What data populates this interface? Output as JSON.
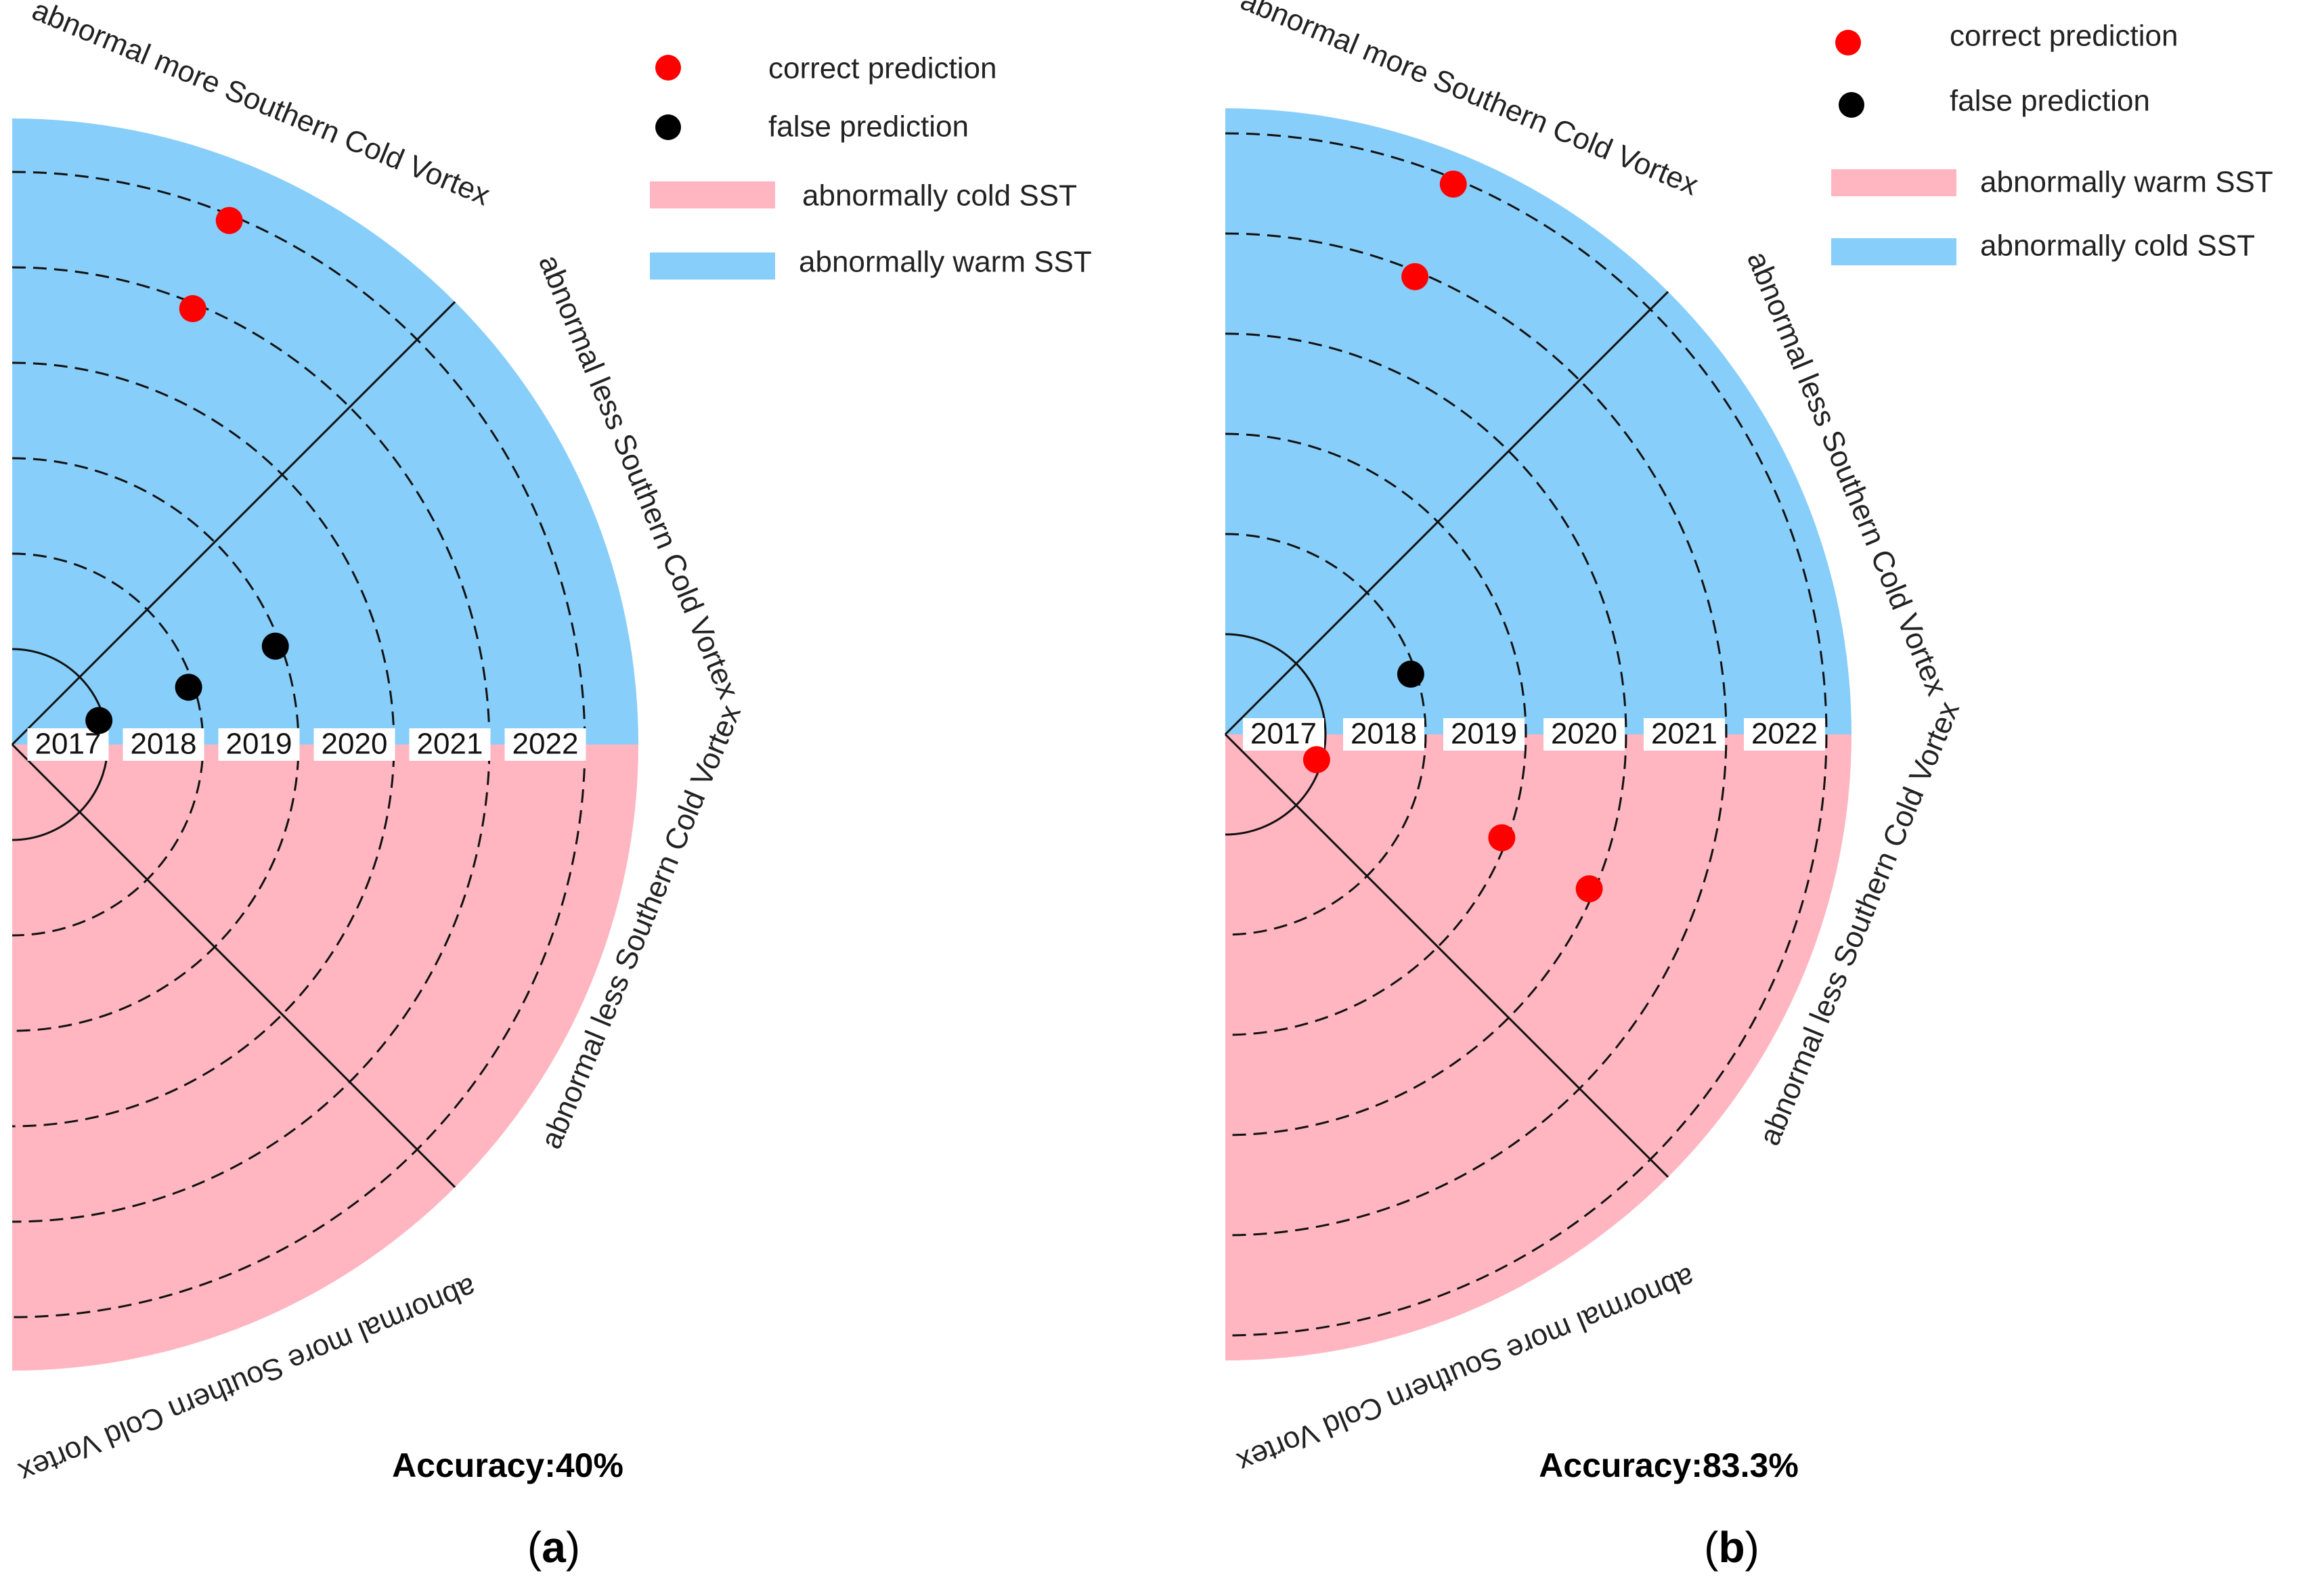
{
  "legend": {
    "correct": "correct prediction",
    "false": "false prediction"
  },
  "colors": {
    "blue": "#87cefa",
    "pink": "#ffb6c1",
    "correct": "#ff0000",
    "false": "#000000"
  },
  "chart_data": [
    {
      "type": "scatter",
      "panel_label": "a",
      "rings": [
        "2017",
        "2018",
        "2019",
        "2020",
        "2021",
        "2022"
      ],
      "sector_labels": {
        "upper_outer": "abnormal more Southern Cold Vortex",
        "upper_inner": "abnormal less Southern Cold Vortex",
        "lower_inner": "abnormal less Southern Cold Vortex",
        "lower_outer": "abnormal more Southern Cold Vortex"
      },
      "legend_bands": [
        {
          "label": "abnormally cold SST",
          "color": "#ffb6c1"
        },
        {
          "label": "abnormally warm SST",
          "color": "#87cefa"
        }
      ],
      "accuracy": "Accuracy:40%",
      "points": [
        {
          "year": "2017",
          "sst": "upper",
          "vortex": "less",
          "result": "false"
        },
        {
          "year": "2018",
          "sst": "upper",
          "vortex": "less",
          "result": "false"
        },
        {
          "year": "2019",
          "sst": "upper",
          "vortex": "less",
          "result": "false"
        },
        {
          "year": "2021",
          "sst": "upper",
          "vortex": "more",
          "result": "correct"
        },
        {
          "year": "2022",
          "sst": "upper",
          "vortex": "more",
          "result": "correct"
        }
      ]
    },
    {
      "type": "scatter",
      "panel_label": "b",
      "rings": [
        "2017",
        "2018",
        "2019",
        "2020",
        "2021",
        "2022"
      ],
      "sector_labels": {
        "upper_outer": "abnormal more Southern Cold Vortex",
        "upper_inner": "abnormal less Southern Cold Vortex",
        "lower_inner": "abnormal less Southern Cold Vortex",
        "lower_outer": "abnormal more Southern Cold Vortex"
      },
      "legend_bands": [
        {
          "label": "abnormally warm SST",
          "color": "#ffb6c1"
        },
        {
          "label": "abnormally cold SST",
          "color": "#87cefa"
        }
      ],
      "accuracy": "Accuracy:83.3%",
      "points": [
        {
          "year": "2017",
          "sst": "lower",
          "vortex": "less",
          "result": "correct"
        },
        {
          "year": "2018",
          "sst": "upper",
          "vortex": "less",
          "result": "false"
        },
        {
          "year": "2019",
          "sst": "lower",
          "vortex": "less",
          "result": "correct"
        },
        {
          "year": "2020",
          "sst": "lower",
          "vortex": "less",
          "result": "correct"
        },
        {
          "year": "2021",
          "sst": "upper",
          "vortex": "more",
          "result": "correct"
        },
        {
          "year": "2022",
          "sst": "upper",
          "vortex": "more",
          "result": "correct"
        }
      ]
    }
  ]
}
